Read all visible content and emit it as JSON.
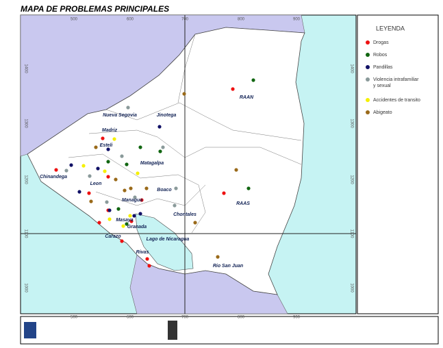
{
  "title": "MAPA DE PROBLEMAS PRINCIPALES",
  "legend": {
    "title": "LEYENDA",
    "items": [
      {
        "label": "Drogas",
        "color": "#ee1111"
      },
      {
        "label": "Robos",
        "color": "#116611"
      },
      {
        "label": "Pandillas",
        "color": "#111166"
      },
      {
        "label": "Violencia intrafamiliar y sexual",
        "color": "#8a9a9a"
      },
      {
        "label": "Accidentes de transito",
        "color": "#f5f000"
      },
      {
        "label": "Abigeato",
        "color": "#9a6a1a"
      }
    ]
  },
  "top_ticks": [
    "500",
    "600",
    "700",
    "800",
    "900"
  ],
  "side_ticks": [
    "1400",
    "1300",
    "1200",
    "1100",
    "1000"
  ],
  "places": [
    "Nueva Segovia",
    "Jinotega",
    "RAAN",
    "Madriz",
    "Esteli",
    "Chinandega",
    "Leon",
    "Matagalpa",
    "Boaco",
    "Managua",
    "Masaya",
    "Granada",
    "Carazo",
    "Rivas",
    "Chontales",
    "RAAS",
    "Lago de Nicaragua",
    "Rio San Juan"
  ]
}
